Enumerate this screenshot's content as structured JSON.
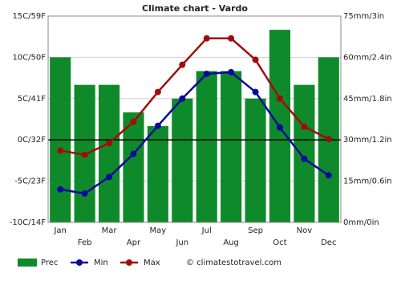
{
  "chart_data": {
    "type": "combo",
    "title": "Climate chart - Vardo",
    "categories": [
      "Jan",
      "Feb",
      "Mar",
      "Apr",
      "May",
      "Jun",
      "Jul",
      "Aug",
      "Sep",
      "Oct",
      "Nov",
      "Dec"
    ],
    "ylim": [
      -10,
      15
    ],
    "yticks": [
      {
        "value": -10,
        "label": "-10C/14F"
      },
      {
        "value": -5,
        "label": "-5C/23F"
      },
      {
        "value": 0,
        "label": "0C/32F"
      },
      {
        "value": 5,
        "label": "5C/41F"
      },
      {
        "value": 10,
        "label": "10C/50F"
      },
      {
        "value": 15,
        "label": "15C/59F"
      }
    ],
    "y2lim": [
      0,
      75
    ],
    "y2ticks": [
      {
        "value": 0,
        "label": "0mm/0in"
      },
      {
        "value": 15,
        "label": "15mm/0.6in"
      },
      {
        "value": 30,
        "label": "30mm/1.2in"
      },
      {
        "value": 45,
        "label": "45mm/1.8in"
      },
      {
        "value": 60,
        "label": "60mm/2.4in"
      },
      {
        "value": 75,
        "label": "75mm/3in"
      }
    ],
    "grid": true,
    "series": [
      {
        "name": "Prec",
        "type": "bar",
        "axis": "y2",
        "color": "#0f8a2a",
        "values": [
          60,
          50,
          50,
          40,
          35,
          45,
          55,
          55,
          45,
          70,
          50,
          60
        ]
      },
      {
        "name": "Min",
        "type": "line",
        "color": "#0a0a9a",
        "values": [
          -6,
          -6.5,
          -4.5,
          -1.7,
          1.7,
          5,
          8,
          8.2,
          5.8,
          1.5,
          -2.3,
          -4.3
        ]
      },
      {
        "name": "Max",
        "type": "line",
        "color": "#a00d0d",
        "values": [
          -1.3,
          -1.8,
          -0.4,
          2.2,
          5.8,
          9.1,
          12.3,
          12.3,
          9.7,
          5,
          1.6,
          0.1
        ]
      }
    ],
    "source": "© climatestotravel.com"
  }
}
